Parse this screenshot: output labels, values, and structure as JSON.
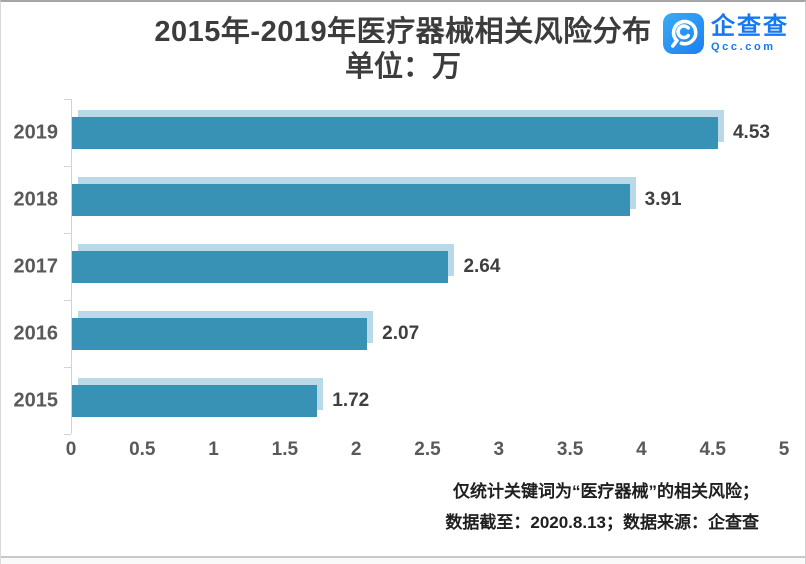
{
  "title": {
    "line1": "2015年-2019年医疗器械相关风险分布",
    "line2": "单位：万"
  },
  "logo": {
    "name": "企查查",
    "domain": "Qcc.com",
    "icon": "qcc-magnifier-icon",
    "brand_color": "#1678F2",
    "icon_bg_color": "#2196F3"
  },
  "chart_data": {
    "type": "bar",
    "orientation": "horizontal",
    "title": "2015年-2019年医疗器械相关风险分布",
    "subtitle": "单位：万",
    "categories": [
      "2019",
      "2018",
      "2017",
      "2016",
      "2015"
    ],
    "values": [
      4.53,
      3.91,
      2.64,
      2.07,
      1.72
    ],
    "value_labels": [
      "4.53",
      "3.91",
      "2.64",
      "2.07",
      "1.72"
    ],
    "xticks": [
      "0",
      "0.5",
      "1",
      "1.5",
      "2",
      "2.5",
      "3",
      "3.5",
      "4",
      "4.5",
      "5"
    ],
    "xlim": [
      0,
      5
    ],
    "unit": "万",
    "grid": false,
    "legend": false,
    "bar_color": "#3892B5",
    "bar_shadow_color": "#B9D9E8",
    "axis_color": "#D2D2D2"
  },
  "footer": {
    "line1": "仅统计关键词为“医疗器械”的相关风险；",
    "line2": "数据截至：2020.8.13；数据来源：企查查"
  }
}
